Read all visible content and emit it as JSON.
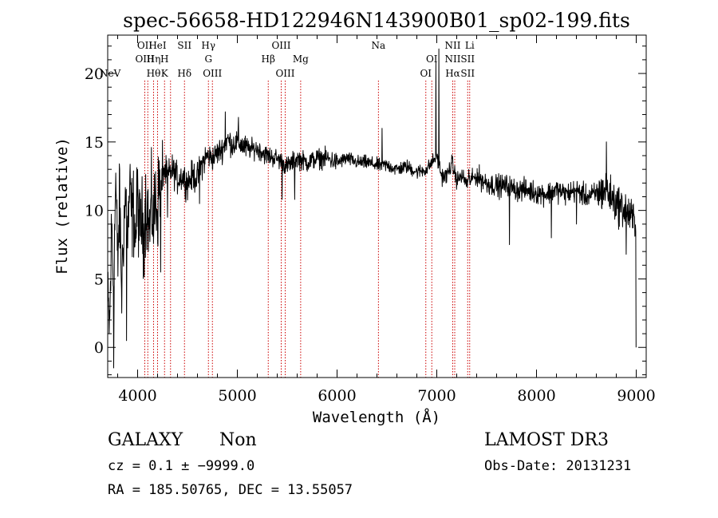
{
  "chart_data": {
    "type": "line",
    "title": "spec-56658-HD122946N143900B01_sp02-199.fits",
    "xlabel": "Wavelength (Å)",
    "ylabel": "Flux (relative)",
    "xlim": [
      3700,
      9100
    ],
    "ylim": [
      -2.2,
      22.8
    ],
    "x_ticks": [
      4000,
      5000,
      6000,
      7000,
      8000,
      9000
    ],
    "x_tick_labels": [
      "4000",
      "5000",
      "6000",
      "7000",
      "8000",
      "9000"
    ],
    "y_ticks": [
      0,
      5,
      10,
      15,
      20
    ],
    "y_tick_labels": [
      "0",
      "5",
      "10",
      "15",
      "20"
    ],
    "x_minor_step": 200,
    "y_minor_step": 1,
    "series": [
      {
        "name": "spectrum",
        "anchors": [
          [
            3700,
            3.0
          ],
          [
            3720,
            1.5
          ],
          [
            3740,
            9.0
          ],
          [
            3760,
            4.0
          ],
          [
            3780,
            12.5
          ],
          [
            3800,
            6.0
          ],
          [
            3820,
            10.5
          ],
          [
            3840,
            4.0
          ],
          [
            3860,
            9.0
          ],
          [
            3880,
            11.0
          ],
          [
            3900,
            8.0
          ],
          [
            3920,
            11.5
          ],
          [
            3940,
            9.5
          ],
          [
            3960,
            10.0
          ],
          [
            3980,
            8.0
          ],
          [
            4000,
            11.0
          ],
          [
            4020,
            8.5
          ],
          [
            4040,
            9.5
          ],
          [
            4060,
            8.0
          ],
          [
            4080,
            10.5
          ],
          [
            4100,
            10.0
          ],
          [
            4120,
            8.5
          ],
          [
            4140,
            10.5
          ],
          [
            4160,
            9.0
          ],
          [
            4180,
            11.0
          ],
          [
            4200,
            10.0
          ],
          [
            4220,
            12.5
          ],
          [
            4240,
            11.5
          ],
          [
            4260,
            13.0
          ],
          [
            4300,
            12.5
          ],
          [
            4350,
            13.0
          ],
          [
            4400,
            12.3
          ],
          [
            4450,
            12.5
          ],
          [
            4500,
            12.0
          ],
          [
            4550,
            12.5
          ],
          [
            4600,
            12.4
          ],
          [
            4650,
            13.5
          ],
          [
            4700,
            14.0
          ],
          [
            4750,
            13.8
          ],
          [
            4800,
            14.2
          ],
          [
            4850,
            14.5
          ],
          [
            4900,
            15.2
          ],
          [
            4950,
            14.8
          ],
          [
            5000,
            15.0
          ],
          [
            5100,
            14.5
          ],
          [
            5200,
            14.5
          ],
          [
            5300,
            14.0
          ],
          [
            5400,
            13.8
          ],
          [
            5500,
            13.2
          ],
          [
            5600,
            13.8
          ],
          [
            5700,
            13.5
          ],
          [
            5800,
            13.8
          ],
          [
            5900,
            13.8
          ],
          [
            6000,
            13.5
          ],
          [
            6100,
            13.8
          ],
          [
            6200,
            13.5
          ],
          [
            6300,
            13.5
          ],
          [
            6400,
            13.3
          ],
          [
            6500,
            13.3
          ],
          [
            6600,
            13.0
          ],
          [
            6700,
            13.2
          ],
          [
            6800,
            12.8
          ],
          [
            6900,
            13.0
          ],
          [
            6950,
            13.5
          ],
          [
            7000,
            14.0
          ],
          [
            7050,
            12.5
          ],
          [
            7100,
            12.5
          ],
          [
            7150,
            13.5
          ],
          [
            7200,
            12.2
          ],
          [
            7250,
            12.5
          ],
          [
            7300,
            12.0
          ],
          [
            7350,
            12.3
          ],
          [
            7400,
            12.5
          ],
          [
            7500,
            12.0
          ],
          [
            7600,
            11.8
          ],
          [
            7700,
            11.8
          ],
          [
            7800,
            11.5
          ],
          [
            7900,
            11.5
          ],
          [
            8000,
            11.3
          ],
          [
            8100,
            11.2
          ],
          [
            8200,
            11.5
          ],
          [
            8300,
            11.2
          ],
          [
            8400,
            11.5
          ],
          [
            8500,
            11.0
          ],
          [
            8600,
            11.2
          ],
          [
            8700,
            11.5
          ],
          [
            8800,
            10.5
          ],
          [
            8900,
            10.0
          ],
          [
            8950,
            9.5
          ],
          [
            9000,
            9.0
          ]
        ],
        "features": [
          {
            "x": 3760,
            "y": -1.5
          },
          {
            "x": 3820,
            "y": 13.0
          },
          {
            "x": 3890,
            "y": 0.5
          },
          {
            "x": 4230,
            "y": 5.5
          },
          {
            "x": 4300,
            "y": 9.5
          },
          {
            "x": 4620,
            "y": 10.5
          },
          {
            "x": 4880,
            "y": 17.2
          },
          {
            "x": 5010,
            "y": 16.8
          },
          {
            "x": 5450,
            "y": 10.8
          },
          {
            "x": 5575,
            "y": 10.8
          },
          {
            "x": 6450,
            "y": 16.0
          },
          {
            "x": 6990,
            "y": 20.8
          },
          {
            "x": 7020,
            "y": 21.8
          },
          {
            "x": 7320,
            "y": 13.0
          },
          {
            "x": 7730,
            "y": 7.5
          },
          {
            "x": 8150,
            "y": 8.0
          },
          {
            "x": 8400,
            "y": 9.0
          },
          {
            "x": 8700,
            "y": 15.0
          },
          {
            "x": 8900,
            "y": 6.8
          },
          {
            "x": 9000,
            "y": 0.0
          }
        ],
        "color": "#000000"
      }
    ],
    "line_markers": {
      "color": "#cc0000",
      "lines": [
        {
          "x": 4072,
          "labels": [
            {
              "text": "OII",
              "row": 1
            },
            {
              "text": "OIII",
              "row": 2
            }
          ]
        },
        {
          "x": 4102,
          "labels": []
        },
        {
          "x": 4160,
          "labels": [
            {
              "text": "Hη",
              "row": 2
            },
            {
              "text": "Hθ",
              "row": 3
            }
          ]
        },
        {
          "x": 4200,
          "labels": [
            {
              "text": "HeI",
              "row": 1
            }
          ]
        },
        {
          "x": 4270,
          "labels": [
            {
              "text": "H",
              "row": 2
            },
            {
              "text": "K",
              "row": 3
            }
          ]
        },
        {
          "x": 4330,
          "labels": []
        },
        {
          "x": 4470,
          "labels": [
            {
              "text": "SII",
              "row": 1
            },
            {
              "text": "Hδ",
              "row": 3
            }
          ]
        },
        {
          "x": 4710,
          "labels": [
            {
              "text": "Hγ",
              "row": 1
            },
            {
              "text": "G",
              "row": 2
            }
          ]
        },
        {
          "x": 4750,
          "labels": [
            {
              "text": "OIII",
              "row": 3
            }
          ]
        },
        {
          "x": 5310,
          "labels": [
            {
              "text": "Hβ",
              "row": 2
            }
          ]
        },
        {
          "x": 5440,
          "labels": [
            {
              "text": "OIII",
              "row": 1
            }
          ]
        },
        {
          "x": 5480,
          "labels": [
            {
              "text": "OIII",
              "row": 3
            }
          ]
        },
        {
          "x": 5635,
          "labels": [
            {
              "text": "Mg",
              "row": 2
            }
          ]
        },
        {
          "x": 6415,
          "labels": [
            {
              "text": "Na",
              "row": 1
            }
          ]
        },
        {
          "x": 6890,
          "labels": [
            {
              "text": "OI",
              "row": 3
            }
          ]
        },
        {
          "x": 6950,
          "labels": [
            {
              "text": "OI",
              "row": 2
            }
          ]
        },
        {
          "x": 7160,
          "labels": [
            {
              "text": "NII",
              "row": 1
            },
            {
              "text": "NII",
              "row": 2
            },
            {
              "text": "Hα",
              "row": 3
            }
          ]
        },
        {
          "x": 7180,
          "labels": []
        },
        {
          "x": 7310,
          "labels": [
            {
              "text": "SII",
              "row": 2
            },
            {
              "text": "SII",
              "row": 3
            }
          ]
        },
        {
          "x": 7330,
          "labels": [
            {
              "text": "Li",
              "row": 1
            }
          ]
        }
      ],
      "edge_labels": [
        {
          "text": "NeV",
          "row": 3
        }
      ]
    },
    "info": {
      "class": "GALAXY",
      "subclass": "Non",
      "survey": "LAMOST DR3",
      "cz": "cz = 0.1 ± −9999.0",
      "obs_date": "Obs-Date: 20131231",
      "coords": "RA = 185.50765, DEC =  13.55057"
    }
  }
}
